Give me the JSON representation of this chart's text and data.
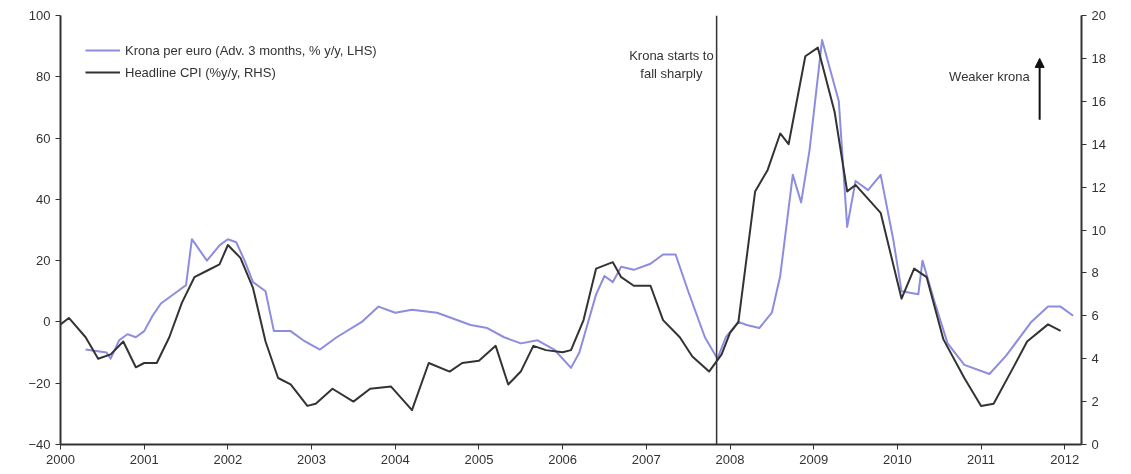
{
  "chart_data": {
    "type": "line",
    "xlim": [
      2000,
      2012.2
    ],
    "xticks": [
      2000,
      2001,
      2002,
      2003,
      2004,
      2005,
      2006,
      2007,
      2008,
      2009,
      2010,
      2011,
      2012
    ],
    "ylim": [
      -40,
      100
    ],
    "yticks": [
      -40,
      -20,
      0,
      20,
      40,
      60,
      80,
      100
    ],
    "y2lim": [
      0,
      20
    ],
    "y2ticks": [
      0,
      2,
      4,
      6,
      8,
      10,
      12,
      14,
      16,
      18,
      20
    ],
    "legend": "top left",
    "grid": false,
    "line_style": "solid",
    "marker": "none",
    "series": [
      {
        "name": "Krona per euro (Adv. 3 months, % y/y, LHS)",
        "color": "#8c8ce0",
        "x": [
          2000.3,
          2000.55,
          2000.6,
          2000.7,
          2000.8,
          2000.9,
          2001.0,
          2001.1,
          2001.2,
          2001.4,
          2001.5,
          2001.57,
          2001.75,
          2001.9,
          2002.0,
          2002.1,
          2002.2,
          2002.3,
          2002.45,
          2002.55,
          2002.75,
          2002.9,
          2003.1,
          2003.3,
          2003.6,
          2003.8,
          2004.0,
          2004.2,
          2004.5,
          2004.9,
          2005.1,
          2005.3,
          2005.5,
          2005.7,
          2005.9,
          2006.1,
          2006.2,
          2006.4,
          2006.5,
          2006.6,
          2006.7,
          2006.85,
          2007.05,
          2007.2,
          2007.35,
          2007.5,
          2007.7,
          2007.85,
          2007.95,
          2008.1,
          2008.2,
          2008.35,
          2008.5,
          2008.6,
          2008.75,
          2008.85,
          2008.95,
          2009.1,
          2009.3,
          2009.4,
          2009.5,
          2009.65,
          2009.8,
          2009.95,
          2010.05,
          2010.25,
          2010.3,
          2010.45,
          2010.6,
          2010.8,
          2011.1,
          2011.3,
          2011.6,
          2011.8,
          2011.95,
          2012.1
        ],
        "values": [
          -9,
          -10,
          -12,
          -6,
          -4,
          -5,
          -3,
          2,
          6,
          10,
          12,
          27,
          20,
          25,
          27,
          26,
          20,
          13,
          10,
          -3,
          -3,
          -6,
          -9,
          -5,
          0,
          5,
          3,
          4,
          3,
          -1,
          -2,
          -5,
          -7,
          -6,
          -9,
          -15,
          -10,
          9,
          15,
          13,
          18,
          17,
          19,
          22,
          22,
          10,
          -5,
          -12,
          -5,
          0,
          -1,
          -2,
          3,
          15,
          48,
          39,
          56,
          92,
          72,
          31,
          46,
          43,
          48,
          27,
          10,
          9,
          20,
          6,
          -7,
          -14,
          -17,
          -11,
          0,
          5,
          5,
          2
        ]
      },
      {
        "name": "Headline CPI (%y/y, RHS)",
        "color": "#333333",
        "axis": "y2",
        "x": [
          2000.0,
          2000.1,
          2000.3,
          2000.45,
          2000.6,
          2000.75,
          2000.9,
          2001.0,
          2001.15,
          2001.3,
          2001.45,
          2001.6,
          2001.75,
          2001.9,
          2002.0,
          2002.15,
          2002.3,
          2002.45,
          2002.6,
          2002.75,
          2002.95,
          2003.05,
          2003.25,
          2003.5,
          2003.7,
          2003.95,
          2004.2,
          2004.4,
          2004.65,
          2004.8,
          2005.0,
          2005.2,
          2005.35,
          2005.5,
          2005.65,
          2005.8,
          2006.0,
          2006.1,
          2006.25,
          2006.4,
          2006.6,
          2006.7,
          2006.85,
          2007.05,
          2007.2,
          2007.4,
          2007.55,
          2007.75,
          2007.9,
          2008.0,
          2008.1,
          2008.3,
          2008.45,
          2008.6,
          2008.7,
          2008.9,
          2009.05,
          2009.25,
          2009.4,
          2009.5,
          2009.8,
          2010.05,
          2010.2,
          2010.35,
          2010.55,
          2010.8,
          2011.0,
          2011.15,
          2011.4,
          2011.55,
          2011.8,
          2011.95
        ],
        "values": [
          5.6,
          5.9,
          5.0,
          4.0,
          4.2,
          4.8,
          3.6,
          3.8,
          3.8,
          5.0,
          6.6,
          7.8,
          8.1,
          8.4,
          9.3,
          8.7,
          7.3,
          4.8,
          3.1,
          2.8,
          1.8,
          1.9,
          2.6,
          2.0,
          2.6,
          2.7,
          1.6,
          3.8,
          3.4,
          3.8,
          3.9,
          4.6,
          2.8,
          3.4,
          4.6,
          4.4,
          4.3,
          4.4,
          5.8,
          8.2,
          8.5,
          7.8,
          7.4,
          7.4,
          5.8,
          5.0,
          4.1,
          3.4,
          4.2,
          5.2,
          5.7,
          11.8,
          12.8,
          14.5,
          14.0,
          18.1,
          18.5,
          15.5,
          11.8,
          12.1,
          10.8,
          6.8,
          8.2,
          7.8,
          4.9,
          3.1,
          1.8,
          1.9,
          3.7,
          4.8,
          5.6,
          5.3
        ]
      }
    ],
    "ref_lines": [
      {
        "axis": "x",
        "value": 2007.84,
        "color": "#333333",
        "line_style": "solid"
      }
    ],
    "annotations": [
      "Krona starts to\nfall sharply",
      "Weaker krona"
    ]
  }
}
